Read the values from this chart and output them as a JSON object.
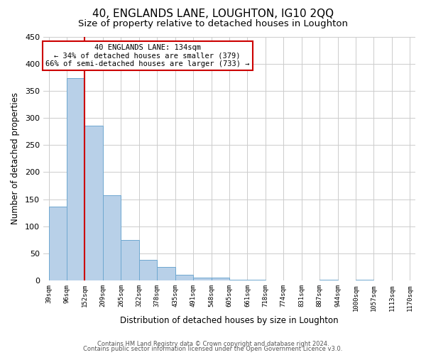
{
  "title": "40, ENGLANDS LANE, LOUGHTON, IG10 2QQ",
  "subtitle": "Size of property relative to detached houses in Loughton",
  "xlabel": "Distribution of detached houses by size in Loughton",
  "ylabel": "Number of detached properties",
  "bar_values": [
    136,
    373,
    286,
    157,
    75,
    38,
    25,
    11,
    5,
    5,
    2,
    1,
    0,
    0,
    0,
    2,
    0,
    2,
    0,
    0
  ],
  "tick_labels": [
    "39sqm",
    "96sqm",
    "152sqm",
    "209sqm",
    "265sqm",
    "322sqm",
    "378sqm",
    "435sqm",
    "491sqm",
    "548sqm",
    "605sqm",
    "661sqm",
    "718sqm",
    "774sqm",
    "831sqm",
    "887sqm",
    "944sqm",
    "1000sqm",
    "1057sqm",
    "1113sqm",
    "1170sqm"
  ],
  "bar_color": "#b8d0e8",
  "bar_edge_color": "#6fa8d0",
  "vline_x": 2,
  "vline_color": "#cc0000",
  "ylim": [
    0,
    450
  ],
  "yticks": [
    0,
    50,
    100,
    150,
    200,
    250,
    300,
    350,
    400,
    450
  ],
  "annotation_title": "40 ENGLANDS LANE: 134sqm",
  "annotation_line1": "← 34% of detached houses are smaller (379)",
  "annotation_line2": "66% of semi-detached houses are larger (733) →",
  "annotation_box_color": "#ffffff",
  "annotation_box_edge": "#cc0000",
  "footer1": "Contains HM Land Registry data © Crown copyright and database right 2024.",
  "footer2": "Contains public sector information licensed under the Open Government Licence v3.0.",
  "background_color": "#ffffff",
  "grid_color": "#cccccc",
  "title_fontsize": 11,
  "subtitle_fontsize": 9.5,
  "xlabel_fontsize": 8.5,
  "ylabel_fontsize": 8.5
}
